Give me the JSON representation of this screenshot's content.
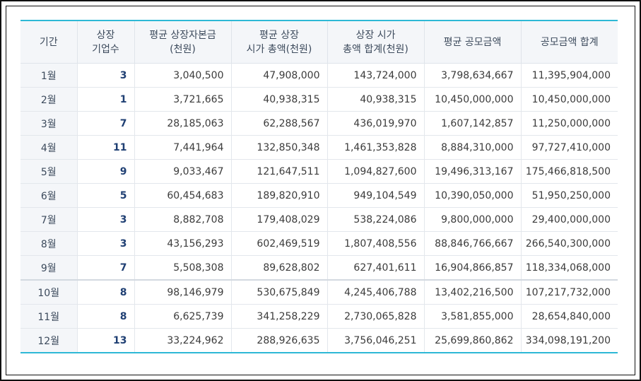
{
  "table": {
    "headers": [
      "기간",
      "상장\n기업수",
      "평균 상장자본금\n(천원)",
      "평균 상장\n시가 총액(천원)",
      "상장 시가\n총액 합계(천원)",
      "평균 공모금액",
      "공모금액 합계"
    ],
    "rows": [
      {
        "period": "1월",
        "count": "3",
        "avg_capital": "3,040,500",
        "avg_market_cap": "47,908,000",
        "total_market_cap": "143,724,000",
        "avg_offering": "3,798,634,667",
        "total_offering": "11,395,904,000"
      },
      {
        "period": "2월",
        "count": "1",
        "avg_capital": "3,721,665",
        "avg_market_cap": "40,938,315",
        "total_market_cap": "40,938,315",
        "avg_offering": "10,450,000,000",
        "total_offering": "10,450,000,000"
      },
      {
        "period": "3월",
        "count": "7",
        "avg_capital": "28,185,063",
        "avg_market_cap": "62,288,567",
        "total_market_cap": "436,019,970",
        "avg_offering": "1,607,142,857",
        "total_offering": "11,250,000,000"
      },
      {
        "period": "4월",
        "count": "11",
        "avg_capital": "7,441,964",
        "avg_market_cap": "132,850,348",
        "total_market_cap": "1,461,353,828",
        "avg_offering": "8,884,310,000",
        "total_offering": "97,727,410,000"
      },
      {
        "period": "5월",
        "count": "9",
        "avg_capital": "9,033,467",
        "avg_market_cap": "121,647,511",
        "total_market_cap": "1,094,827,600",
        "avg_offering": "19,496,313,167",
        "total_offering": "175,466,818,500"
      },
      {
        "period": "6월",
        "count": "5",
        "avg_capital": "60,454,683",
        "avg_market_cap": "189,820,910",
        "total_market_cap": "949,104,549",
        "avg_offering": "10,390,050,000",
        "total_offering": "51,950,250,000"
      },
      {
        "period": "7월",
        "count": "3",
        "avg_capital": "8,882,708",
        "avg_market_cap": "179,408,029",
        "total_market_cap": "538,224,086",
        "avg_offering": "9,800,000,000",
        "total_offering": "29,400,000,000"
      },
      {
        "period": "8월",
        "count": "3",
        "avg_capital": "43,156,293",
        "avg_market_cap": "602,469,519",
        "total_market_cap": "1,807,408,556",
        "avg_offering": "88,846,766,667",
        "total_offering": "266,540,300,000"
      },
      {
        "period": "9월",
        "count": "7",
        "avg_capital": "5,508,308",
        "avg_market_cap": "89,628,802",
        "total_market_cap": "627,401,611",
        "avg_offering": "16,904,866,857",
        "total_offering": "118,334,068,000"
      },
      {
        "period": "10월",
        "count": "8",
        "avg_capital": "98,146,979",
        "avg_market_cap": "530,675,849",
        "total_market_cap": "4,245,406,788",
        "avg_offering": "13,402,216,500",
        "total_offering": "107,217,732,000"
      },
      {
        "period": "11월",
        "count": "8",
        "avg_capital": "6,625,739",
        "avg_market_cap": "341,258,229",
        "total_market_cap": "2,730,065,828",
        "avg_offering": "3,581,855,000",
        "total_offering": "28,654,840,000"
      },
      {
        "period": "12월",
        "count": "13",
        "avg_capital": "33,224,962",
        "avg_market_cap": "288,926,635",
        "total_market_cap": "3,756,046,251",
        "avg_offering": "25,699,860,862",
        "total_offering": "334,098,191,200"
      }
    ]
  },
  "colors": {
    "accent_rule": "#2eb8d6",
    "header_bg": "#f4f6f9",
    "count_text": "#1f3f73"
  }
}
